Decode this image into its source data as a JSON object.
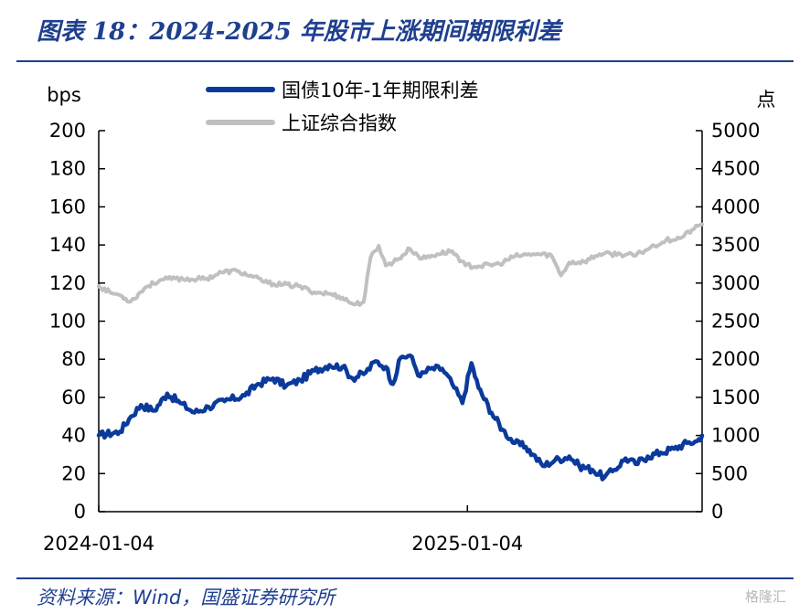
{
  "title": "图表 18：2024-2025 年股市上涨期间期限利差",
  "source": "资料来源：Wind，国盛证券研究所",
  "watermark": "格隆汇",
  "chart_data": {
    "type": "line",
    "y_left_unit": "bps",
    "y_right_unit": "点",
    "y_left_range": [
      0,
      200
    ],
    "y_left_ticks": [
      0,
      20,
      40,
      60,
      80,
      100,
      120,
      140,
      160,
      180,
      200
    ],
    "y_right_range": [
      0,
      5000
    ],
    "y_right_ticks": [
      0,
      500,
      1000,
      1500,
      2000,
      2500,
      3000,
      3500,
      4000,
      4500,
      5000
    ],
    "x_range": [
      "2024-01-04",
      "2025-08-25"
    ],
    "x_ticks": [
      "2024-01-04",
      "2025-01-04"
    ],
    "grid": false,
    "legend_position": "top-center",
    "series": [
      {
        "name": "国债10年-1年期限利差",
        "axis": "left",
        "color": "#0b3a9b",
        "points": [
          [
            "2024-01-04",
            40
          ],
          [
            "2024-01-25",
            42
          ],
          [
            "2024-02-05",
            50
          ],
          [
            "2024-02-15",
            56
          ],
          [
            "2024-02-28",
            53
          ],
          [
            "2024-03-12",
            62
          ],
          [
            "2024-03-25",
            57
          ],
          [
            "2024-04-08",
            52
          ],
          [
            "2024-04-22",
            55
          ],
          [
            "2024-05-08",
            58
          ],
          [
            "2024-05-28",
            61
          ],
          [
            "2024-06-10",
            67
          ],
          [
            "2024-06-25",
            70
          ],
          [
            "2024-07-08",
            66
          ],
          [
            "2024-07-22",
            69
          ],
          [
            "2024-08-05",
            74
          ],
          [
            "2024-08-20",
            77
          ],
          [
            "2024-09-02",
            76
          ],
          [
            "2024-09-12",
            70
          ],
          [
            "2024-09-25",
            73
          ],
          [
            "2024-10-05",
            79
          ],
          [
            "2024-10-15",
            76
          ],
          [
            "2024-10-22",
            67
          ],
          [
            "2024-10-30",
            81
          ],
          [
            "2024-11-08",
            82
          ],
          [
            "2024-11-18",
            71
          ],
          [
            "2024-11-28",
            75
          ],
          [
            "2024-12-10",
            75
          ],
          [
            "2024-12-20",
            67
          ],
          [
            "2024-12-30",
            57
          ],
          [
            "2025-01-08",
            78
          ],
          [
            "2025-01-15",
            65
          ],
          [
            "2025-01-28",
            52
          ],
          [
            "2025-02-08",
            43
          ],
          [
            "2025-02-20",
            36
          ],
          [
            "2025-03-03",
            34
          ],
          [
            "2025-03-10",
            30
          ],
          [
            "2025-03-20",
            24
          ],
          [
            "2025-04-01",
            27
          ],
          [
            "2025-04-15",
            29
          ],
          [
            "2025-04-25",
            24
          ],
          [
            "2025-05-08",
            22
          ],
          [
            "2025-05-20",
            18
          ],
          [
            "2025-05-30",
            22
          ],
          [
            "2025-06-10",
            28
          ],
          [
            "2025-06-20",
            25
          ],
          [
            "2025-07-02",
            29
          ],
          [
            "2025-07-15",
            31
          ],
          [
            "2025-07-28",
            33
          ],
          [
            "2025-08-10",
            36
          ],
          [
            "2025-08-20",
            37
          ],
          [
            "2025-08-25",
            40
          ]
        ]
      },
      {
        "name": "上证综合指数",
        "axis": "right",
        "color": "#c0c0c0",
        "points": [
          [
            "2024-01-04",
            2960
          ],
          [
            "2024-01-15",
            2880
          ],
          [
            "2024-01-25",
            2840
          ],
          [
            "2024-02-05",
            2760
          ],
          [
            "2024-02-20",
            2950
          ],
          [
            "2024-03-05",
            3040
          ],
          [
            "2024-03-20",
            3060
          ],
          [
            "2024-04-05",
            3050
          ],
          [
            "2024-04-20",
            3060
          ],
          [
            "2024-05-05",
            3140
          ],
          [
            "2024-05-20",
            3160
          ],
          [
            "2024-06-05",
            3080
          ],
          [
            "2024-06-20",
            3000
          ],
          [
            "2024-07-05",
            2980
          ],
          [
            "2024-07-20",
            2960
          ],
          [
            "2024-08-05",
            2880
          ],
          [
            "2024-08-20",
            2860
          ],
          [
            "2024-09-02",
            2810
          ],
          [
            "2024-09-13",
            2720
          ],
          [
            "2024-09-23",
            2750
          ],
          [
            "2024-09-30",
            3340
          ],
          [
            "2024-10-08",
            3490
          ],
          [
            "2024-10-15",
            3230
          ],
          [
            "2024-10-28",
            3320
          ],
          [
            "2024-11-08",
            3450
          ],
          [
            "2024-11-20",
            3320
          ],
          [
            "2024-12-05",
            3380
          ],
          [
            "2024-12-20",
            3420
          ],
          [
            "2025-01-02",
            3230
          ],
          [
            "2025-01-15",
            3220
          ],
          [
            "2025-02-05",
            3250
          ],
          [
            "2025-02-20",
            3350
          ],
          [
            "2025-03-10",
            3380
          ],
          [
            "2025-03-28",
            3370
          ],
          [
            "2025-04-07",
            3100
          ],
          [
            "2025-04-15",
            3270
          ],
          [
            "2025-04-30",
            3280
          ],
          [
            "2025-05-15",
            3380
          ],
          [
            "2025-06-05",
            3380
          ],
          [
            "2025-06-20",
            3360
          ],
          [
            "2025-07-05",
            3470
          ],
          [
            "2025-07-20",
            3560
          ],
          [
            "2025-08-05",
            3600
          ],
          [
            "2025-08-15",
            3700
          ],
          [
            "2025-08-25",
            3770
          ]
        ]
      }
    ]
  }
}
